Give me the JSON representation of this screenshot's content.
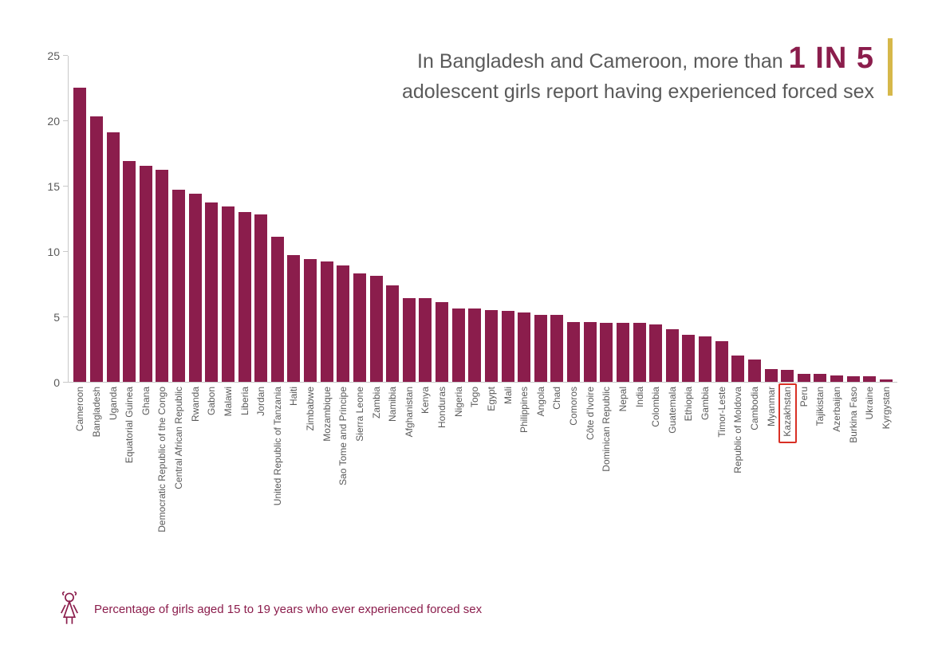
{
  "headline": {
    "line1_a": "In Bangladesh and Cameroon, more than ",
    "emph": "1 IN 5",
    "line2": "adolescent girls report having experienced forced sex",
    "text_color": "#5a5a5a",
    "emph_color": "#8b1d4c",
    "accent_bar_color": "#d6b84a",
    "fontsize_normal": 25,
    "fontsize_emph": 38
  },
  "chart": {
    "type": "bar",
    "ylim": [
      0,
      25
    ],
    "yticks": [
      0,
      5,
      10,
      15,
      20,
      25
    ],
    "ylabel_fontsize": 14,
    "axis_color": "#c9c9c9",
    "bar_color": "#8b1d4c",
    "bar_width_ratio": 0.78,
    "xlabel_fontsize": 12,
    "xlabel_color": "#5a5a5a",
    "background_color": "#ffffff",
    "highlight_border_color": "#d93025",
    "data": [
      {
        "country": "Cameroon",
        "value": 22.5
      },
      {
        "country": "Bangladesh",
        "value": 20.3
      },
      {
        "country": "Uganda",
        "value": 19.1
      },
      {
        "country": "Equatorial Guinea",
        "value": 16.9
      },
      {
        "country": "Ghana",
        "value": 16.5
      },
      {
        "country": "Democratic Republic of the Congo",
        "value": 16.2
      },
      {
        "country": "Central African Republic",
        "value": 14.7
      },
      {
        "country": "Rwanda",
        "value": 14.4
      },
      {
        "country": "Gabon",
        "value": 13.7
      },
      {
        "country": "Malawi",
        "value": 13.4
      },
      {
        "country": "Liberia",
        "value": 13.0
      },
      {
        "country": "Jordan",
        "value": 12.8
      },
      {
        "country": "United Republic of Tanzania",
        "value": 11.1
      },
      {
        "country": "Haiti",
        "value": 9.7
      },
      {
        "country": "Zimbabwe",
        "value": 9.4
      },
      {
        "country": "Mozambique",
        "value": 9.2
      },
      {
        "country": "Sao Tome and Principe",
        "value": 8.9
      },
      {
        "country": "Sierra Leone",
        "value": 8.3
      },
      {
        "country": "Zambia",
        "value": 8.1
      },
      {
        "country": "Namibia",
        "value": 7.4
      },
      {
        "country": "Afghanistan",
        "value": 6.4
      },
      {
        "country": "Kenya",
        "value": 6.4
      },
      {
        "country": "Honduras",
        "value": 6.1
      },
      {
        "country": "Nigeria",
        "value": 5.6
      },
      {
        "country": "Togo",
        "value": 5.6
      },
      {
        "country": "Egypt",
        "value": 5.5
      },
      {
        "country": "Mali",
        "value": 5.4
      },
      {
        "country": "Philippines",
        "value": 5.3
      },
      {
        "country": "Angola",
        "value": 5.1
      },
      {
        "country": "Chad",
        "value": 5.1
      },
      {
        "country": "Comoros",
        "value": 4.6
      },
      {
        "country": "Côte d'Ivoire",
        "value": 4.6
      },
      {
        "country": "Dominican Republic",
        "value": 4.5
      },
      {
        "country": "Nepal",
        "value": 4.5
      },
      {
        "country": "India",
        "value": 4.5
      },
      {
        "country": "Colombia",
        "value": 4.4
      },
      {
        "country": "Guatemala",
        "value": 4.0
      },
      {
        "country": "Ethiopia",
        "value": 3.6
      },
      {
        "country": "Gambia",
        "value": 3.5
      },
      {
        "country": "Timor-Leste",
        "value": 3.1
      },
      {
        "country": "Republic of Moldova",
        "value": 2.0
      },
      {
        "country": "Cambodia",
        "value": 1.7
      },
      {
        "country": "Myanmar",
        "value": 1.0
      },
      {
        "country": "Kazakhstan",
        "value": 0.9,
        "highlight": true
      },
      {
        "country": "Peru",
        "value": 0.6
      },
      {
        "country": "Tajikistan",
        "value": 0.6
      },
      {
        "country": "Azerbaijan",
        "value": 0.5
      },
      {
        "country": "Burkina Faso",
        "value": 0.4
      },
      {
        "country": "Ukraine",
        "value": 0.4
      },
      {
        "country": "Kyrgystan",
        "value": 0.2
      }
    ]
  },
  "caption": {
    "text": "Percentage of girls aged 15 to 19 years who ever experienced forced sex",
    "color": "#8b1d4c",
    "fontsize": 15,
    "icon_color": "#8b1d4c"
  }
}
